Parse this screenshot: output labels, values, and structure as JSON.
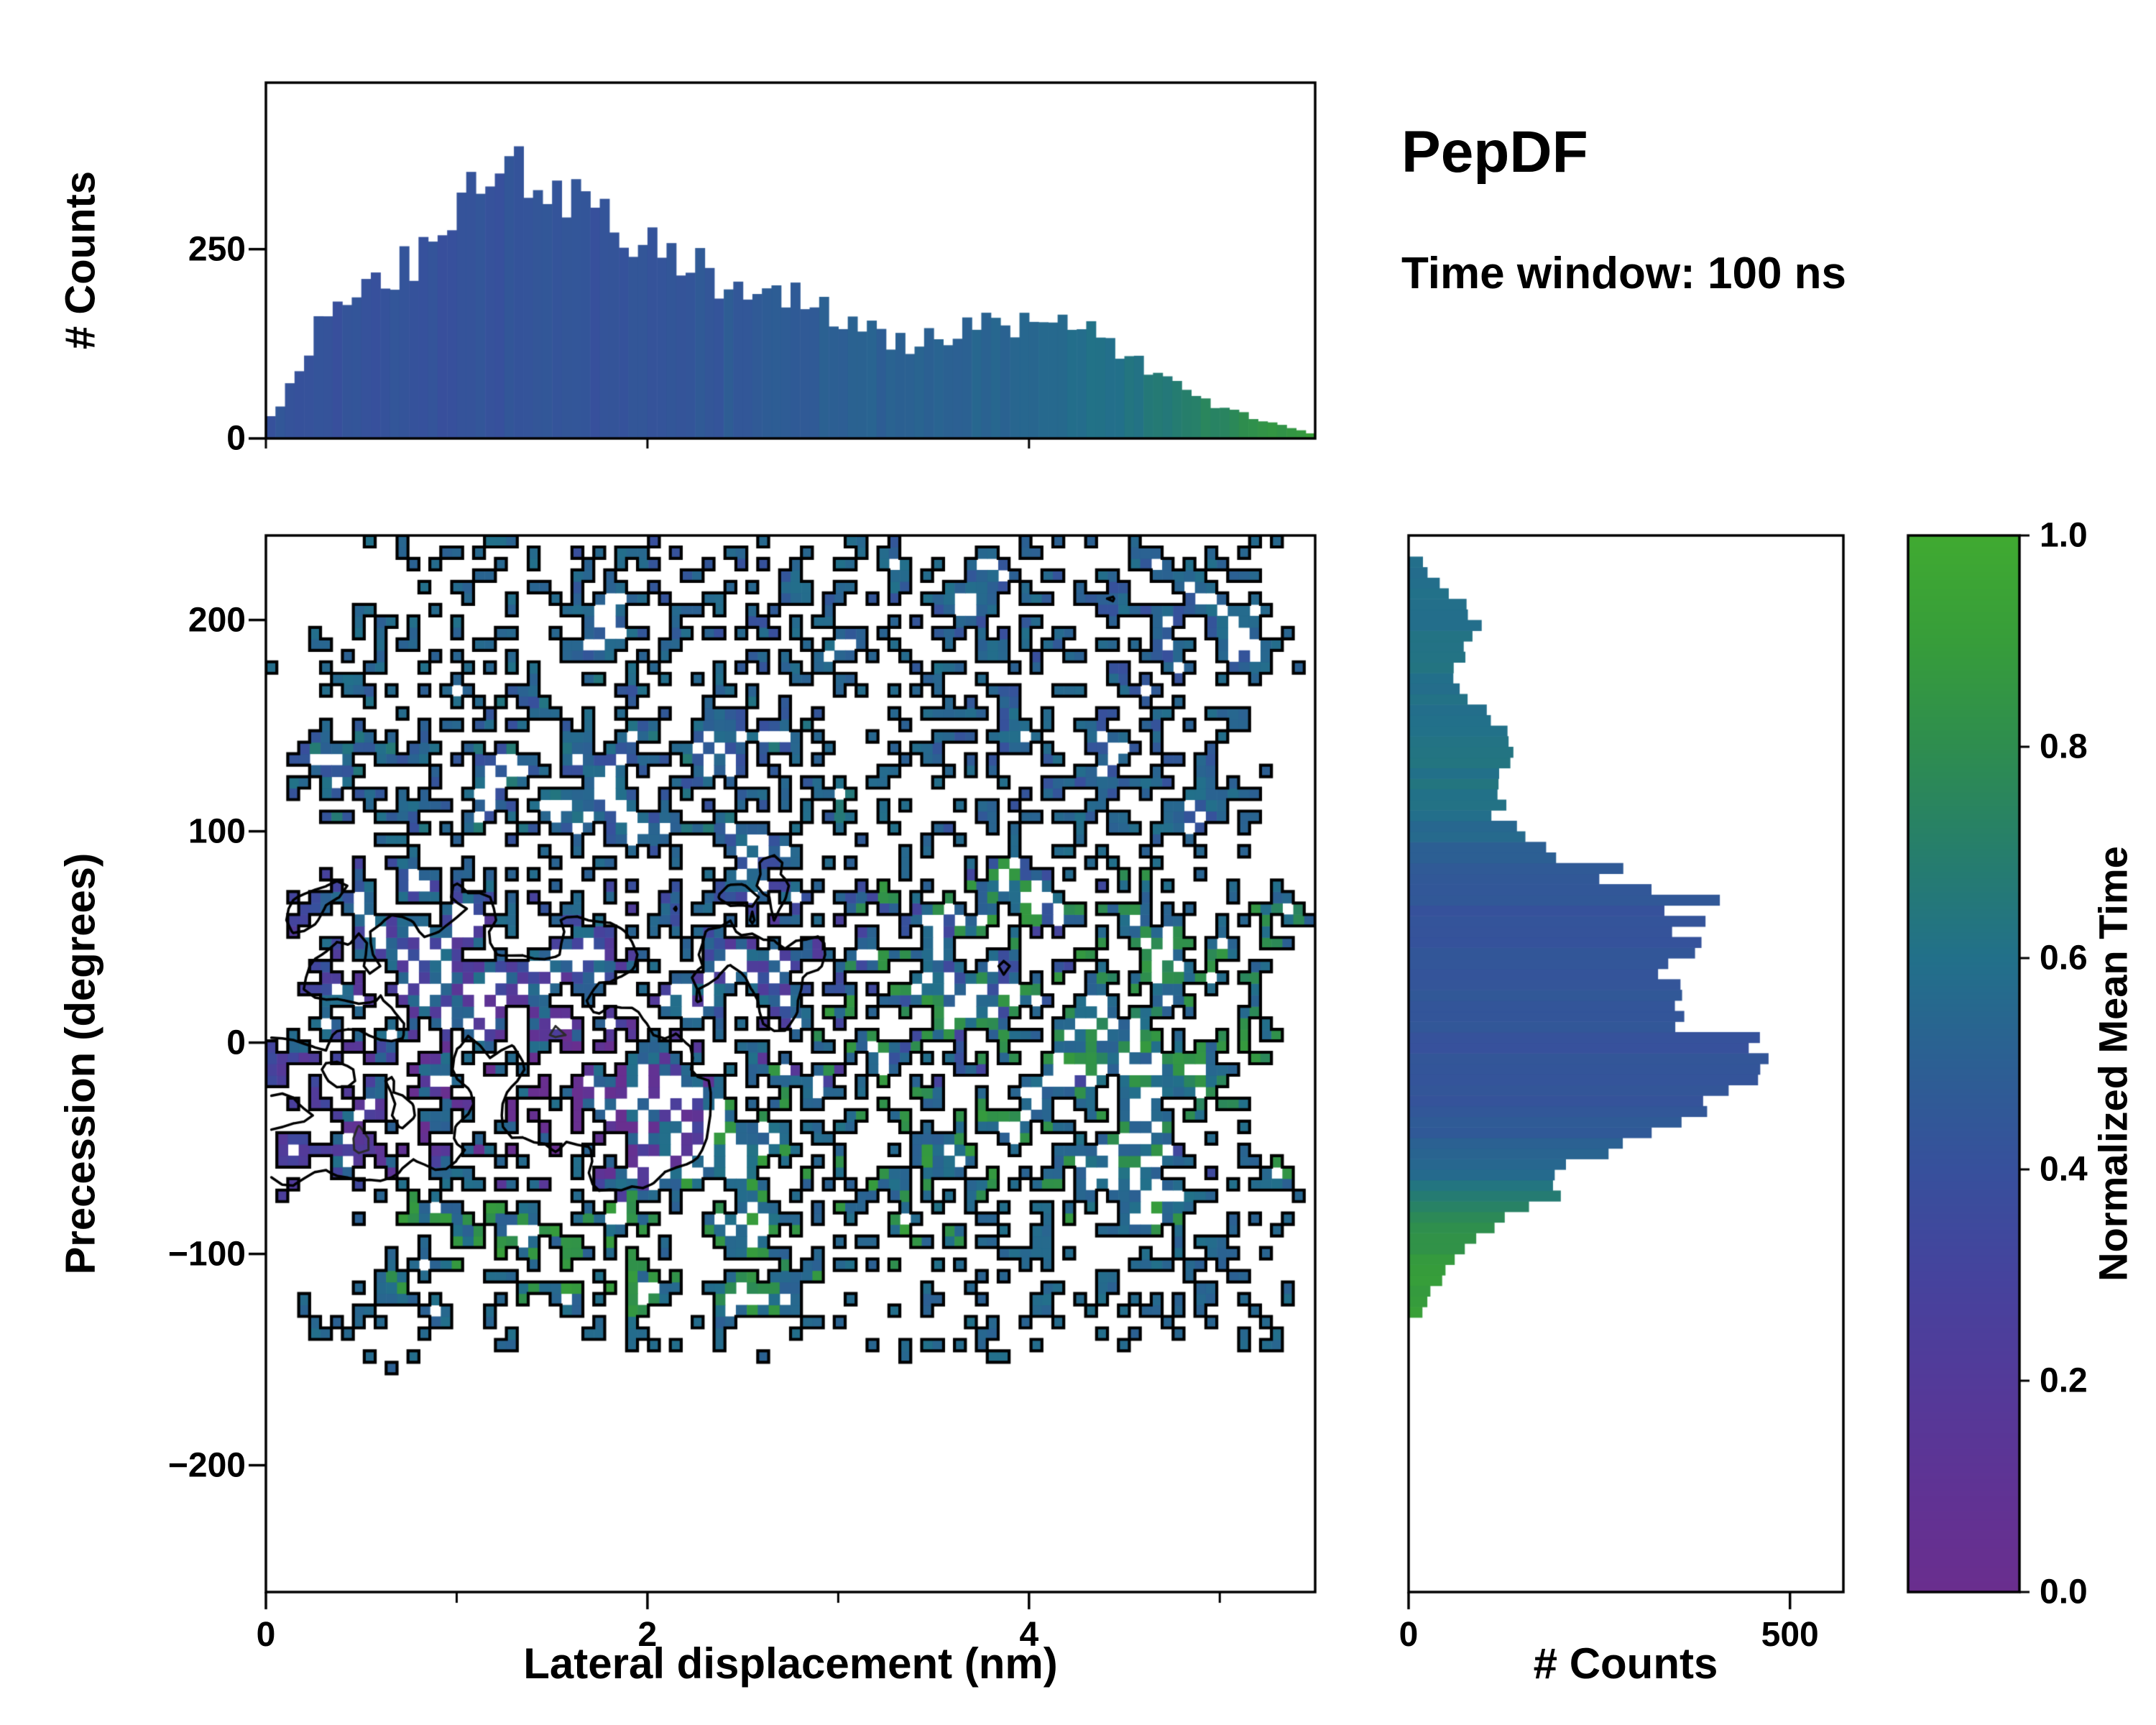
{
  "header": {
    "title": "PepDF",
    "subtitle": "Time window: 100 ns"
  },
  "colors": {
    "background": "#ffffff",
    "axis": "#000000",
    "outer_contour": "#000000"
  },
  "chart_data": [
    {
      "type": "bar",
      "name": "top-marginal-histogram",
      "orientation": "vertical",
      "ylabel": "# Counts",
      "x_range": [
        0,
        5.5
      ],
      "ylim": [
        0,
        470
      ],
      "y_ticks": [
        {
          "v": 0,
          "label": "0"
        },
        {
          "v": 250,
          "label": "250"
        }
      ],
      "bin_width": 0.1,
      "x_start": 0,
      "values": [
        30,
        90,
        150,
        210,
        235,
        250,
        255,
        260,
        300,
        330,
        400,
        420,
        410,
        380,
        370,
        355,
        340,
        350,
        330,
        300,
        280,
        265,
        255,
        245,
        235,
        240,
        230,
        210,
        200,
        190,
        175,
        160,
        150,
        145,
        150,
        155,
        165,
        180,
        160,
        170,
        185,
        180,
        170,
        150,
        130,
        115,
        100,
        85,
        70,
        55,
        45,
        35,
        25,
        18,
        10,
        5
      ],
      "mean_time": [
        0.45,
        0.44,
        0.45,
        0.43,
        0.44,
        0.45,
        0.44,
        0.46,
        0.45,
        0.44,
        0.43,
        0.44,
        0.45,
        0.44,
        0.46,
        0.45,
        0.44,
        0.45,
        0.46,
        0.45,
        0.47,
        0.46,
        0.48,
        0.47,
        0.49,
        0.48,
        0.5,
        0.52,
        0.5,
        0.53,
        0.52,
        0.54,
        0.53,
        0.55,
        0.54,
        0.56,
        0.55,
        0.57,
        0.56,
        0.58,
        0.57,
        0.59,
        0.6,
        0.62,
        0.64,
        0.66,
        0.68,
        0.7,
        0.73,
        0.76,
        0.79,
        0.82,
        0.85,
        0.88,
        0.91,
        0.94
      ]
    },
    {
      "type": "heatmap",
      "name": "precession-vs-lateral-displacement-heatmap",
      "xlabel": "Lateral displacement (nm)",
      "ylabel": "Precession (degrees)",
      "xlim": [
        0,
        5.5
      ],
      "ylim": [
        -260,
        240
      ],
      "x_ticks": [
        {
          "v": 0,
          "label": "0"
        },
        {
          "v": 2,
          "label": "2"
        },
        {
          "v": 4,
          "label": "4"
        }
      ],
      "x_minor_ticks": [
        1,
        3,
        5
      ],
      "y_ticks": [
        {
          "v": 200,
          "label": "200"
        },
        {
          "v": 100,
          "label": "100"
        },
        {
          "v": 0,
          "label": "0"
        },
        {
          "v": -100,
          "label": "−100"
        },
        {
          "v": -200,
          "label": "−200"
        }
      ],
      "grid": {
        "nx": 96,
        "ny": 92
      },
      "speckle_hole_p": 0.04,
      "regions": [
        {
          "op": "fill",
          "x": [
            1.45,
            5.35
          ],
          "y": [
            165,
            238
          ],
          "t": 0.6,
          "j": 0.05,
          "seed": 11
        },
        {
          "op": "fill",
          "x": [
            0.05,
            3.3
          ],
          "y": [
            85,
            172
          ],
          "t": 0.68,
          "j": 0.07,
          "seed": 12
        },
        {
          "op": "fill",
          "x": [
            3.38,
            5.15
          ],
          "y": [
            85,
            168
          ],
          "t": 0.6,
          "j": 0.05,
          "seed": 13
        },
        {
          "op": "sprinkle",
          "x": [
            0.1,
            5.2
          ],
          "y": [
            90,
            235
          ],
          "t": 0.47,
          "j": 0.04,
          "p": 0.05,
          "seed": 14,
          "only_filled": true
        },
        {
          "op": "hole",
          "x": [
            2.85,
            3.62
          ],
          "y": [
            104,
            180
          ],
          "seed": 15
        },
        {
          "op": "fill",
          "x": [
            0.0,
            5.02
          ],
          "y": [
            -77,
            88
          ],
          "t": 0.43,
          "j": 0.07,
          "seed": 16
        },
        {
          "op": "sprinkle",
          "x": [
            0.0,
            3.0
          ],
          "y": [
            -70,
            60
          ],
          "t": 0.3,
          "j": 0.06,
          "p": 0.08,
          "seed": 17,
          "only_filled": true
        },
        {
          "op": "gauss",
          "cx": 1.4,
          "cy": -26,
          "rx": 0.95,
          "ry": 46,
          "d": 0.26
        },
        {
          "op": "gauss",
          "cx": 1.55,
          "cy": -34,
          "rx": 0.5,
          "ry": 24,
          "d": 0.12
        },
        {
          "op": "fill",
          "x": [
            2.15,
            4.85
          ],
          "y": [
            -104,
            -12
          ],
          "t": 0.9,
          "j": 0.05,
          "seed": 18
        },
        {
          "op": "fill",
          "x": [
            0.55,
            2.3
          ],
          "y": [
            -128,
            -68
          ],
          "t": 0.9,
          "j": 0.05,
          "seed": 19
        },
        {
          "op": "fill",
          "x": [
            2.35,
            3.12
          ],
          "y": [
            -133,
            -95
          ],
          "t": 0.88,
          "j": 0.05,
          "seed": 20
        },
        {
          "op": "fill",
          "x": [
            4.25,
            5.38
          ],
          "y": [
            -60,
            76
          ],
          "t": 0.86,
          "j": 0.06,
          "cov": 0.75,
          "seed": 21
        },
        {
          "op": "sprinkle",
          "x": [
            2.9,
            5.0
          ],
          "y": [
            -35,
            80
          ],
          "t": 0.88,
          "j": 0.05,
          "p": 0.1,
          "seed": 22,
          "only_filled": true
        },
        {
          "op": "sprinkle",
          "x": [
            2.3,
            4.8
          ],
          "y": [
            -100,
            -15
          ],
          "t": 0.62,
          "j": 0.05,
          "p": 0.05,
          "seed": 23,
          "only_filled": true
        },
        {
          "op": "sprinkle",
          "x": [
            0.3,
            5.3
          ],
          "y": [
            -145,
            238
          ],
          "t": 0.6,
          "j": 0.05,
          "p": 0.004,
          "seed": 24,
          "only_filled": false
        }
      ],
      "contours": {
        "black_levels": [
          0.53,
          0.76
        ],
        "gray_levels": [
          {
            "t": 0.36,
            "c": "#2b2b2b"
          },
          {
            "t": 0.3,
            "c": "#5a5a5a"
          },
          {
            "t": 0.25,
            "c": "#8a8a8a"
          },
          {
            "t": 0.2,
            "c": "#b8b8b8"
          },
          {
            "t": 0.155,
            "c": "#ffffff"
          }
        ]
      },
      "colorbar": {
        "label": "Normalized Mean Time",
        "ticks": [
          {
            "v": 0.0,
            "label": "0.0"
          },
          {
            "v": 0.2,
            "label": "0.2"
          },
          {
            "v": 0.4,
            "label": "0.4"
          },
          {
            "v": 0.6,
            "label": "0.6"
          },
          {
            "v": 0.8,
            "label": "0.8"
          },
          {
            "v": 1.0,
            "label": "1.0"
          }
        ],
        "stops": [
          [
            0.0,
            "#6a2e8e"
          ],
          [
            0.1,
            "#5f3394"
          ],
          [
            0.2,
            "#533a99"
          ],
          [
            0.3,
            "#45439d"
          ],
          [
            0.4,
            "#37509c"
          ],
          [
            0.5,
            "#2c5f93"
          ],
          [
            0.6,
            "#22708a"
          ],
          [
            0.7,
            "#267e6c"
          ],
          [
            0.8,
            "#2e8d4f"
          ],
          [
            0.9,
            "#379d3a"
          ],
          [
            1.0,
            "#40aa31"
          ]
        ]
      }
    },
    {
      "type": "bar",
      "name": "right-marginal-histogram",
      "orientation": "horizontal",
      "xlabel": "# Counts",
      "y_range": [
        -130,
        230
      ],
      "xlim": [
        0,
        570
      ],
      "x_ticks": [
        {
          "v": 0,
          "label": "0"
        },
        {
          "v": 500,
          "label": "500"
        }
      ],
      "bin_width": 10,
      "y_start": -130,
      "values": [
        20,
        40,
        60,
        90,
        140,
        190,
        230,
        280,
        330,
        380,
        430,
        480,
        500,
        470,
        420,
        380,
        360,
        400,
        440,
        430,
        350,
        260,
        180,
        140,
        130,
        150,
        160,
        140,
        110,
        80,
        60,
        80,
        110,
        90,
        50,
        20
      ],
      "mean_time": [
        0.93,
        0.91,
        0.89,
        0.86,
        0.8,
        0.72,
        0.62,
        0.55,
        0.5,
        0.47,
        0.45,
        0.44,
        0.44,
        0.45,
        0.45,
        0.46,
        0.46,
        0.45,
        0.44,
        0.45,
        0.47,
        0.5,
        0.55,
        0.6,
        0.63,
        0.64,
        0.64,
        0.63,
        0.62,
        0.62,
        0.63,
        0.64,
        0.63,
        0.62,
        0.61,
        0.6
      ]
    }
  ]
}
